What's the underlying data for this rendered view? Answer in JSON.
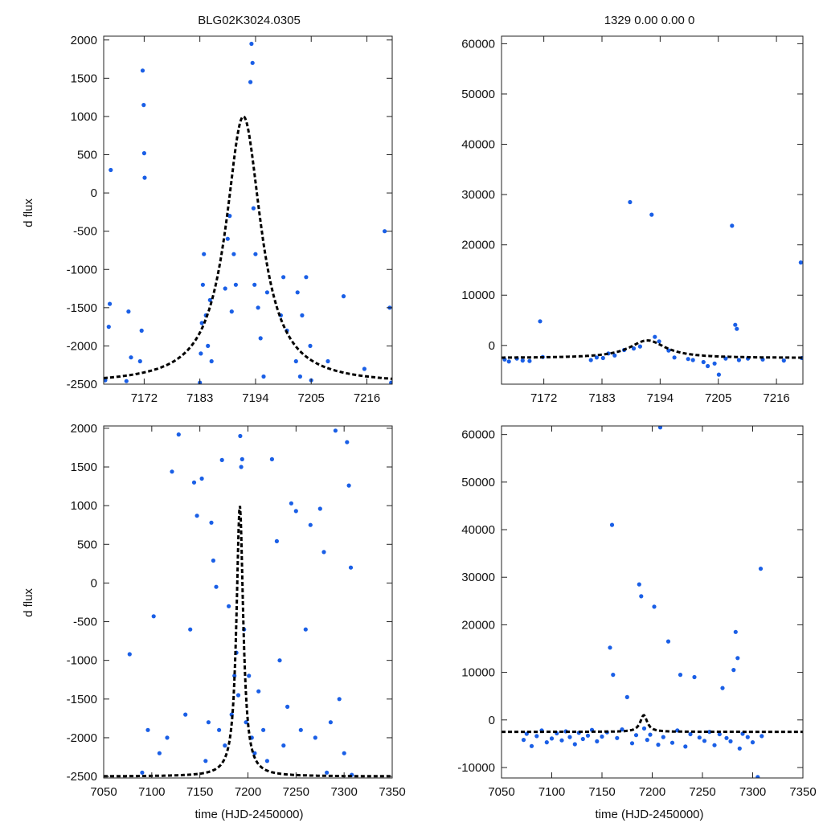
{
  "figure": {
    "title_left": "BLG02K3024.0305",
    "title_right": "1329  0.00  0.00  0",
    "ylabel": "d flux",
    "xlabel": "time (HJD-2450000)"
  },
  "colors": {
    "points": "#1a5fe6",
    "model": "#000000",
    "axes": "#222222"
  },
  "chart_data": [
    {
      "type": "scatter",
      "panel": "top-left",
      "title": "BLG02K3024.0305",
      "xlabel": "",
      "ylabel": "d flux",
      "xlim": [
        7164,
        7221
      ],
      "ylim": [
        -2500,
        2050
      ],
      "xticks": [
        7172,
        7183,
        7194,
        7205,
        7216
      ],
      "yticks": [
        -2500,
        -2000,
        -1500,
        -1000,
        -500,
        0,
        500,
        1000,
        1500,
        2000
      ],
      "model": {
        "type": "line",
        "style": "dashed",
        "t0": 7191.6,
        "tE": 4.2,
        "base": -2500,
        "peak": 1000
      },
      "series": [
        {
          "x": [
            7164.3,
            7165.0,
            7165.2,
            7165.4,
            7168.5,
            7168.9,
            7169.4,
            7171.2,
            7171.5,
            7171.7,
            7171.9,
            7172.0,
            7172.1,
            7183.0,
            7183.2,
            7183.4,
            7183.6,
            7183.8,
            7184.2,
            7184.6,
            7185.0,
            7185.3,
            7188.0,
            7188.5,
            7188.9,
            7189.3,
            7189.7,
            7190.1,
            7193.0,
            7193.2,
            7193.4,
            7193.6,
            7193.8,
            7194.0,
            7194.5,
            7195.0,
            7195.6,
            7196.3,
            7199.0,
            7199.5,
            7200.2,
            7202.0,
            7202.3,
            7202.8,
            7203.2,
            7204.0,
            7204.8,
            7205.0,
            7208.3,
            7211.4,
            7215.5,
            7219.5,
            7220.5,
            7220.8
          ],
          "y": [
            -2450,
            -1750,
            -1450,
            300,
            -2460,
            -1550,
            -2150,
            -2200,
            -1800,
            1600,
            1150,
            520,
            200,
            -2480,
            -2100,
            -1700,
            -1200,
            -800,
            -1600,
            -2000,
            -1400,
            -2200,
            -1250,
            -600,
            -300,
            -1550,
            -800,
            -1200,
            1450,
            1950,
            1700,
            -200,
            -1200,
            -800,
            -1500,
            -1900,
            -2400,
            -1300,
            -1600,
            -1100,
            -1800,
            -2200,
            -1300,
            -2400,
            -1600,
            -1100,
            -2000,
            -2450,
            -2200,
            -1350,
            -2300,
            -500,
            -1500,
            -2480
          ]
        }
      ]
    },
    {
      "type": "scatter",
      "panel": "top-right",
      "title": "1329  0.00  0.00  0",
      "xlabel": "",
      "ylabel": "",
      "xlim": [
        7164,
        7221
      ],
      "ylim": [
        -7700,
        61500
      ],
      "xticks": [
        7172,
        7183,
        7194,
        7205,
        7216
      ],
      "yticks": [
        0,
        10000,
        20000,
        30000,
        40000,
        50000,
        60000
      ],
      "model": {
        "type": "line",
        "style": "dashed",
        "t0": 7191.6,
        "tE": 4.2,
        "base": -2500,
        "peak": 1000
      },
      "series": [
        {
          "x": [
            7164.6,
            7165.4,
            7166.9,
            7168.0,
            7169.3,
            7171.3,
            7171.8,
            7180.9,
            7182.0,
            7183.2,
            7184.2,
            7185.4,
            7187.2,
            7188.3,
            7189.0,
            7190.2,
            7192.4,
            7193.0,
            7193.8,
            7195.6,
            7196.7,
            7199.3,
            7200.2,
            7202.2,
            7203.0,
            7204.3,
            7205.1,
            7206.4,
            7207.6,
            7208.2,
            7208.5,
            7208.9,
            7210.6,
            7213.4,
            7217.4,
            7220.6,
            7220.8
          ],
          "y": [
            -2800,
            -3200,
            -2600,
            -3000,
            -3100,
            4800,
            -2300,
            -2900,
            -2400,
            -2500,
            -1600,
            -2000,
            -900,
            28500,
            -600,
            -200,
            26000,
            1700,
            800,
            -1000,
            -2400,
            -2700,
            -2900,
            -3300,
            -4100,
            -3600,
            -5800,
            -2600,
            23800,
            4100,
            3300,
            -2900,
            -2600,
            -2800,
            -3000,
            16500,
            -2500
          ]
        }
      ]
    },
    {
      "type": "scatter",
      "panel": "bottom-left",
      "title": "",
      "xlabel": "time (HJD-2450000)",
      "ylabel": "d flux",
      "xlim": [
        7050,
        7350
      ],
      "ylim": [
        -2520,
        2030
      ],
      "xticks": [
        7050,
        7100,
        7150,
        7200,
        7250,
        7300,
        7350
      ],
      "yticks": [
        -2500,
        -2000,
        -1500,
        -1000,
        -500,
        0,
        500,
        1000,
        1500,
        2000
      ],
      "model": {
        "type": "line",
        "style": "dashed",
        "t0": 7191.6,
        "tE": 4.2,
        "base": -2500,
        "peak": 1000
      },
      "series": [
        {
          "x": [
            7077,
            7090,
            7096,
            7102,
            7108,
            7116,
            7121,
            7128,
            7135,
            7140,
            7144,
            7147,
            7152,
            7156,
            7159,
            7162,
            7164,
            7167,
            7170,
            7173,
            7176,
            7180,
            7183,
            7186,
            7188,
            7190,
            7192,
            7193,
            7194,
            7196,
            7198,
            7201,
            7204,
            7207,
            7211,
            7216,
            7220,
            7225,
            7230,
            7233,
            7237,
            7241,
            7245,
            7250,
            7255,
            7260,
            7265,
            7270,
            7275,
            7279,
            7282,
            7286,
            7291,
            7295,
            7300,
            7303,
            7305,
            7307,
            7308
          ],
          "y": [
            -920,
            -2450,
            -1900,
            -430,
            -2200,
            -2000,
            1440,
            1920,
            -1700,
            -600,
            1300,
            870,
            1350,
            -2300,
            -1800,
            780,
            290,
            -50,
            -1900,
            1590,
            -2100,
            -300,
            -1700,
            -1200,
            -900,
            -1450,
            1900,
            1500,
            1600,
            -600,
            -1800,
            -1200,
            -2000,
            -2200,
            -1400,
            -1900,
            -2300,
            1600,
            540,
            -1000,
            -2100,
            -1600,
            1030,
            930,
            -1900,
            -600,
            750,
            -2000,
            960,
            400,
            -2450,
            -1800,
            1970,
            -1500,
            -2200,
            1820,
            1260,
            200,
            -2480
          ]
        }
      ]
    },
    {
      "type": "scatter",
      "panel": "bottom-right",
      "title": "",
      "xlabel": "time (HJD-2450000)",
      "ylabel": "",
      "xlim": [
        7050,
        7350
      ],
      "ylim": [
        -12200,
        61800
      ],
      "xticks": [
        7050,
        7100,
        7150,
        7200,
        7250,
        7300,
        7350
      ],
      "yticks": [
        -10000,
        0,
        10000,
        20000,
        30000,
        40000,
        50000,
        60000
      ],
      "model": {
        "type": "line",
        "style": "dashed",
        "t0": 7191.6,
        "tE": 4.2,
        "base": -2500,
        "peak": 1000
      },
      "series": [
        {
          "x": [
            7072,
            7075,
            7080,
            7085,
            7090,
            7095,
            7100,
            7105,
            7110,
            7114,
            7118,
            7123,
            7127,
            7131,
            7136,
            7140,
            7145,
            7150,
            7155,
            7158,
            7160,
            7161,
            7165,
            7170,
            7175,
            7180,
            7184,
            7187,
            7189,
            7192,
            7195,
            7198,
            7202,
            7206,
            7208,
            7211,
            7216,
            7220,
            7225,
            7228,
            7233,
            7238,
            7242,
            7247,
            7252,
            7257,
            7262,
            7267,
            7270,
            7274,
            7278,
            7281,
            7283,
            7285,
            7287,
            7290,
            7295,
            7300,
            7305,
            7308,
            7309
          ],
          "y": [
            -4200,
            -2900,
            -5500,
            -3400,
            -2200,
            -4700,
            -3900,
            -2800,
            -4300,
            -2400,
            -3600,
            -5100,
            -2700,
            -4000,
            -3300,
            -2100,
            -4500,
            -3500,
            -2600,
            15200,
            41000,
            9500,
            -3800,
            -2000,
            4800,
            -4900,
            -3200,
            28500,
            26000,
            -1800,
            -4200,
            -3100,
            23800,
            -5200,
            61500,
            -3600,
            16500,
            -4800,
            -2200,
            9500,
            -5600,
            -3000,
            9000,
            -3700,
            -4400,
            -2500,
            -5300,
            -3000,
            6700,
            -3800,
            -4500,
            10500,
            18500,
            13000,
            -6000,
            -2900,
            -3600,
            -4700,
            -12000,
            31800,
            -3400
          ]
        }
      ]
    }
  ]
}
